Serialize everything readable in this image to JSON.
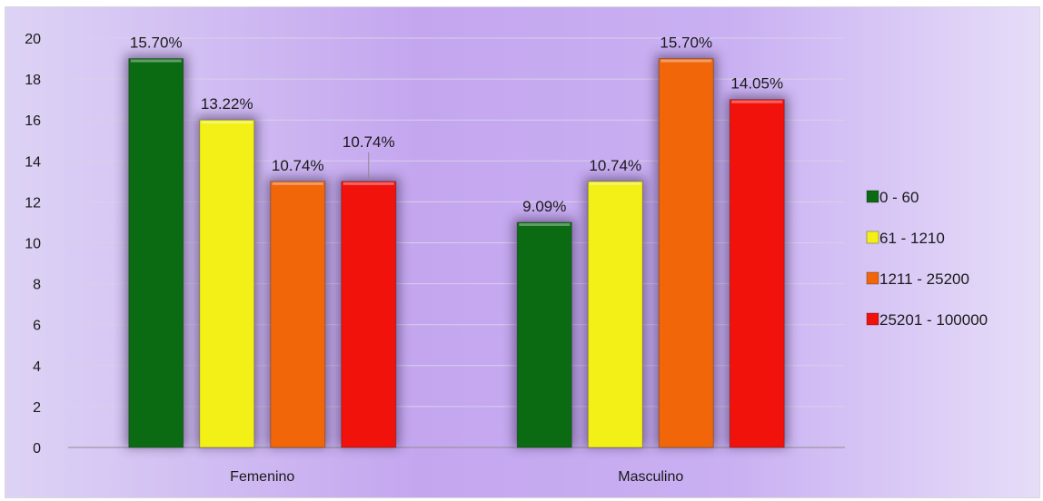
{
  "chart_data": {
    "type": "bar",
    "categories": [
      "Femenino",
      "Masculino"
    ],
    "series": [
      {
        "name": "0 - 60",
        "values": [
          19,
          11
        ],
        "labels": [
          "15.70%",
          "9.09%"
        ],
        "color": "#0b6b12"
      },
      {
        "name": "61 - 1210",
        "values": [
          16,
          13
        ],
        "labels": [
          "13.22%",
          "10.74%"
        ],
        "color": "#f2f016"
      },
      {
        "name": "1211 - 25200",
        "values": [
          13,
          19
        ],
        "labels": [
          "10.74%",
          "15.70%"
        ],
        "color": "#f2660a"
      },
      {
        "name": "25201 - 100000",
        "values": [
          13,
          17
        ],
        "labels": [
          "10.74%",
          "14.05%"
        ],
        "color": "#f2120c"
      }
    ],
    "ylim": [
      0,
      20
    ],
    "yticks": [
      0,
      2,
      4,
      6,
      8,
      10,
      12,
      14,
      16,
      18,
      20
    ],
    "grid": true,
    "legend": "right",
    "title": "",
    "xlabel": "",
    "ylabel": ""
  }
}
